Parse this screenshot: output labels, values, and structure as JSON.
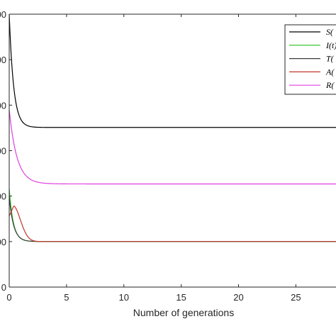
{
  "chart_data": {
    "type": "line",
    "title": "",
    "xlabel": "Number of generations",
    "ylabel": "",
    "xlim": [
      0,
      28.5
    ],
    "ylim": [
      0,
      1.0
    ],
    "x_ticks": [
      0,
      5,
      10,
      15,
      20,
      25
    ],
    "x_tick_labels": [
      "0",
      "5",
      "10",
      "15",
      "20",
      "25"
    ],
    "y_ticks": [
      0,
      0.1667,
      0.3333,
      0.5,
      0.6667,
      0.8333,
      1.0
    ],
    "y_tick_labels": [
      "0",
      "00",
      "00",
      "00",
      "00",
      "00",
      "00"
    ],
    "grid": false,
    "legend_position": "top-right",
    "series": [
      {
        "name": "S(",
        "color": "#000000",
        "y0": 1.0,
        "peak": 1.0,
        "ss": 0.585,
        "k": 2.6
      },
      {
        "name": "I(t)",
        "color": "#22c21e",
        "y0": 0.36,
        "peak": 0.36,
        "ss": 0.167,
        "k": 2.8
      },
      {
        "name": "T(",
        "color": "#3a3a3a",
        "y0": 0.33,
        "peak": 0.33,
        "ss": 0.167,
        "k": 2.6
      },
      {
        "name": "A(",
        "color": "#c0382b",
        "y0": 0.26,
        "peak": 0.298,
        "ss": 0.167,
        "k": 1.3,
        "tpeak": 0.4
      },
      {
        "name": "R(",
        "color": "#e040e0",
        "y0": 0.65,
        "peak": 0.65,
        "ss": 0.378,
        "k": 1.5
      }
    ]
  }
}
